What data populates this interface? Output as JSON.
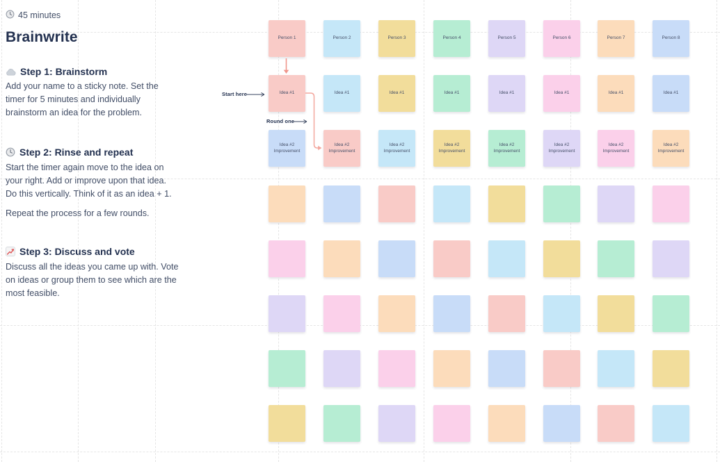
{
  "panel": {
    "duration": "45 minutes",
    "title": "Brainwrite",
    "steps": [
      {
        "icon": "cloud-icon",
        "heading": "Step 1: Brainstorm",
        "body": "Add your name to a sticky note. Set the\ntimer for 5 minutes and individually\nbrainstorm an idea for the problem."
      },
      {
        "icon": "clock-icon",
        "heading": "Step 2: Rinse and repeat",
        "body": "Start the timer again move to the idea on\nyour right. Add or improve upon that idea.\nDo this vertically. Think of it as an idea + 1.",
        "body2": "Repeat the process for a few rounds."
      },
      {
        "icon": "chart-increasing-icon",
        "heading": "Step 3: Discuss and vote",
        "body": "Discuss all the ideas you came up with. Vote\non ideas or group them to see which are the\nmost feasible."
      }
    ]
  },
  "annotations": {
    "start_here": "Start here",
    "round_one": "Round one"
  },
  "palette": {
    "salmon": "#f9cbc7",
    "blue": "#c5e7f8",
    "yellow": "#f2dd9b",
    "mint": "#b6edd3",
    "lavender": "#ded7f6",
    "pink": "#fbd0ea",
    "peach": "#fcdcbb",
    "periwinkle": "#c8dcf8"
  },
  "colors": {
    "heading_text": "#22304f",
    "body_text": "#414d66",
    "note_text": "#454f68",
    "annotation_arrow": "#3a4660",
    "arrow_red": "#f0968c",
    "connector": "#f3a79e",
    "grid_line": "#e5e5e5",
    "background": "#ffffff"
  },
  "board": {
    "columns": 8,
    "rows": [
      {
        "labels": [
          "Person 1",
          "Person 2",
          "Person 3",
          "Person 4",
          "Person 5",
          "Person 6",
          "Person 7",
          "Person 8"
        ],
        "colors": [
          "salmon",
          "blue",
          "yellow",
          "mint",
          "lavender",
          "pink",
          "peach",
          "periwinkle"
        ]
      },
      {
        "labels": [
          "Idea #1",
          "Idea #1",
          "Idea #1",
          "Idea #1",
          "Idea #1",
          "Idea #1",
          "Idea #1",
          "Idea #1"
        ],
        "colors": [
          "salmon",
          "blue",
          "yellow",
          "mint",
          "lavender",
          "pink",
          "peach",
          "periwinkle"
        ]
      },
      {
        "labels": [
          "Idea #2\nImprovement",
          "Idea #2\nImprovement",
          "Idea #2\nImprovement",
          "Idea #2\nImprovement",
          "Idea #2\nImprovement",
          "Idea #2\nImprovement",
          "Idea #2\nImprovement",
          "Idea #2\nImprovement"
        ],
        "colors": [
          "periwinkle",
          "salmon",
          "blue",
          "yellow",
          "mint",
          "lavender",
          "pink",
          "peach"
        ]
      },
      {
        "labels": [
          "",
          "",
          "",
          "",
          "",
          "",
          "",
          ""
        ],
        "colors": [
          "peach",
          "periwinkle",
          "salmon",
          "blue",
          "yellow",
          "mint",
          "lavender",
          "pink"
        ]
      },
      {
        "labels": [
          "",
          "",
          "",
          "",
          "",
          "",
          "",
          ""
        ],
        "colors": [
          "pink",
          "peach",
          "periwinkle",
          "salmon",
          "blue",
          "yellow",
          "mint",
          "lavender"
        ]
      },
      {
        "labels": [
          "",
          "",
          "",
          "",
          "",
          "",
          "",
          ""
        ],
        "colors": [
          "lavender",
          "pink",
          "peach",
          "periwinkle",
          "salmon",
          "blue",
          "yellow",
          "mint"
        ]
      },
      {
        "labels": [
          "",
          "",
          "",
          "",
          "",
          "",
          "",
          ""
        ],
        "colors": [
          "mint",
          "lavender",
          "pink",
          "peach",
          "periwinkle",
          "salmon",
          "blue",
          "yellow"
        ]
      },
      {
        "labels": [
          "",
          "",
          "",
          "",
          "",
          "",
          "",
          ""
        ],
        "colors": [
          "yellow",
          "mint",
          "lavender",
          "pink",
          "peach",
          "periwinkle",
          "salmon",
          "blue"
        ]
      }
    ]
  }
}
